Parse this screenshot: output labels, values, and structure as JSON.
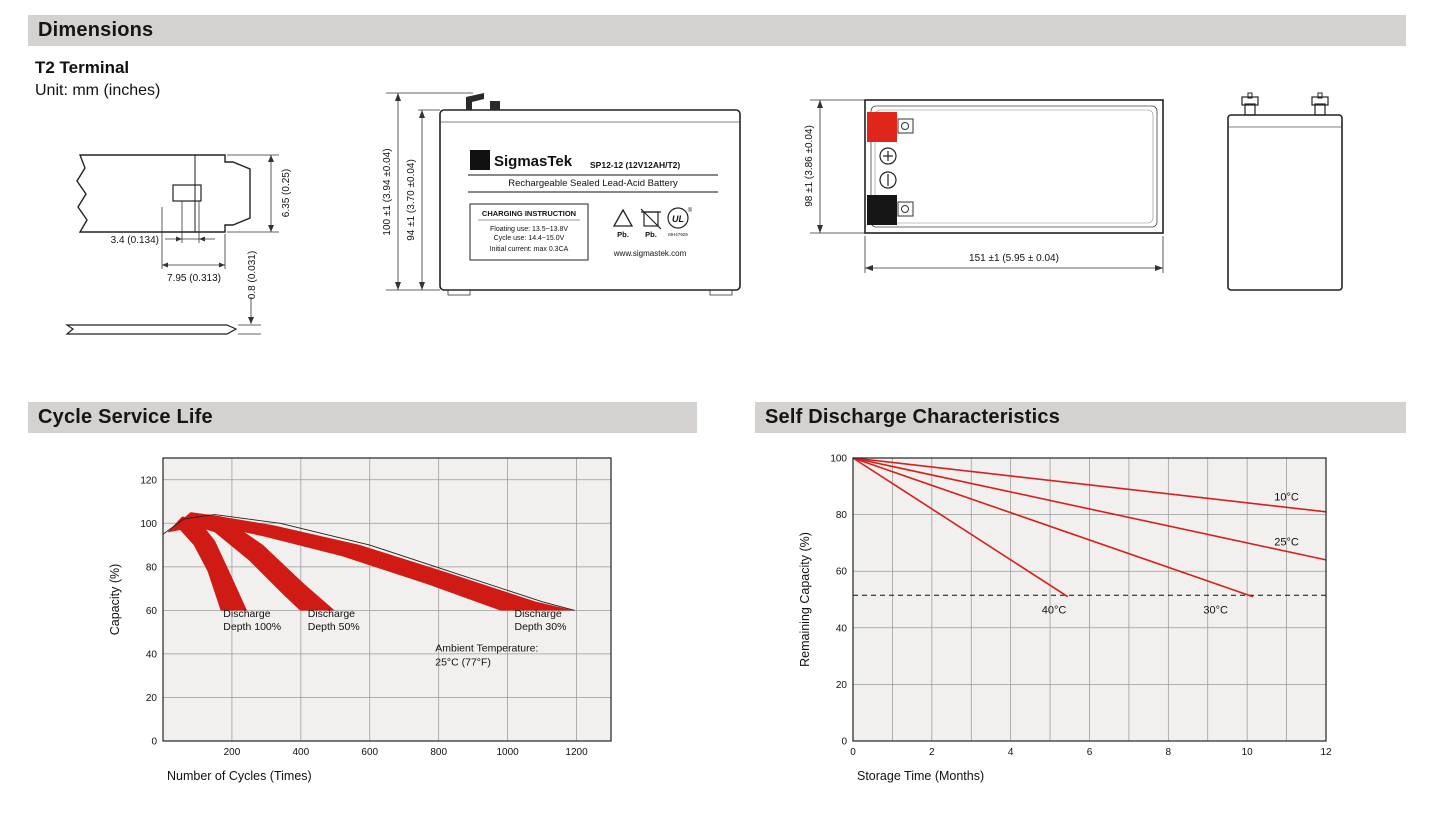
{
  "sections": {
    "dimensions_title": "Dimensions",
    "cycle_title": "Cycle Service Life",
    "self_discharge_title": "Self Discharge Characteristics"
  },
  "dimensions": {
    "terminal_heading": "T2 Terminal",
    "unit_note": "Unit: mm (inches)",
    "terminal_drawing": {
      "dim_height": "6.35 (0.25)",
      "dim_hole": "3.4 (0.134)",
      "dim_width": "7.95 (0.313)",
      "dim_thickness": "0.8 (0.031)"
    },
    "front_view": {
      "dim_overall_height": "100 ±1 (3.94 ±0.04)",
      "dim_case_height": "94 ±1 (3.70 ±0.04)",
      "logo_sigma": "Σ",
      "brand": "SigmasTek",
      "model": "SP12-12 (12V12AH/T2)",
      "subtitle": "Rechargeable Sealed Lead-Acid Battery",
      "charging_box_title": "CHARGING INSTRUCTION",
      "charging_lines": [
        "Floating use: 13.5~13.8V",
        "Cycle use: 14.4~15.0V",
        "Initial current: max 0.3CA"
      ],
      "pb_label_1": "Pb.",
      "pb_label_2": "Pb.",
      "ul_mark": "UL",
      "ul_reg": "®",
      "ul_code": "MH47929",
      "website": "www.sigmastek.com"
    },
    "top_view": {
      "dim_width": "98 ±1 (3.86 ±0.04)",
      "dim_length": "151 ±1 (5.95 ± 0.04)"
    }
  },
  "chart_data": [
    {
      "type": "area",
      "title": "Cycle Service Life",
      "xlabel": "Number of Cycles (Times)",
      "ylabel": "Capacity (%)",
      "xlim": [
        0,
        1300
      ],
      "ylim": [
        0,
        130
      ],
      "xticks": [
        200,
        400,
        600,
        800,
        1000,
        1200
      ],
      "yticks": [
        0,
        20,
        40,
        60,
        80,
        100,
        120
      ],
      "xgrid": [
        200,
        400,
        600,
        800,
        1000,
        1200
      ],
      "ygrid": [
        20,
        40,
        60,
        80,
        100,
        120
      ],
      "grid": true,
      "band_color": "#d01b15",
      "bands": [
        {
          "name": "Discharge Depth 100%",
          "upper": [
            [
              15,
              96
            ],
            [
              55,
              103
            ],
            [
              100,
              102
            ],
            [
              150,
              92
            ],
            [
              200,
              75
            ],
            [
              243,
              60
            ]
          ],
          "lower": [
            [
              15,
              96
            ],
            [
              50,
              97
            ],
            [
              90,
              90
            ],
            [
              130,
              78
            ],
            [
              168,
              60
            ]
          ]
        },
        {
          "name": "Discharge Depth 50%",
          "upper": [
            [
              15,
              96
            ],
            [
              80,
              105
            ],
            [
              170,
              103
            ],
            [
              290,
              90
            ],
            [
              410,
              72
            ],
            [
              497,
              60
            ]
          ],
          "lower": [
            [
              15,
              96
            ],
            [
              70,
              100
            ],
            [
              150,
              96
            ],
            [
              250,
              83
            ],
            [
              345,
              68
            ],
            [
              398,
              60
            ]
          ]
        },
        {
          "name": "Discharge Depth 30%",
          "upper": [
            [
              15,
              96
            ],
            [
              130,
              104
            ],
            [
              320,
              99
            ],
            [
              570,
              90
            ],
            [
              830,
              77
            ],
            [
              1080,
              64
            ],
            [
              1188,
              60
            ]
          ],
          "lower": [
            [
              15,
              96
            ],
            [
              120,
              100
            ],
            [
              295,
              94
            ],
            [
              520,
              85
            ],
            [
              770,
              72
            ],
            [
              980,
              60
            ]
          ]
        }
      ],
      "outline": [
        [
          0,
          95
        ],
        [
          60,
          102
        ],
        [
          150,
          104
        ],
        [
          340,
          100
        ],
        [
          600,
          90
        ],
        [
          850,
          77
        ],
        [
          1100,
          64
        ],
        [
          1195,
          60
        ]
      ],
      "band_labels": [
        {
          "lines": [
            "Discharge",
            "Depth 100%"
          ],
          "x": 175,
          "y": 57
        },
        {
          "lines": [
            "Discharge",
            "Depth 50%"
          ],
          "x": 420,
          "y": 57
        },
        {
          "lines": [
            "Discharge",
            "Depth 30%"
          ],
          "x": 1020,
          "y": 57
        }
      ],
      "annotation": {
        "lines": [
          "Ambient Temperature:",
          "25°C (77°F)"
        ],
        "x": 790,
        "y": 41
      }
    },
    {
      "type": "line",
      "title": "Self Discharge Characteristics",
      "xlabel": "Storage Time (Months)",
      "ylabel": "Remaining Capacity (%)",
      "xlim": [
        0,
        12
      ],
      "ylim": [
        0,
        100
      ],
      "xticks": [
        0,
        2,
        4,
        6,
        8,
        10,
        12
      ],
      "yticks": [
        0,
        20,
        40,
        60,
        80,
        100
      ],
      "xgrid": [
        1,
        2,
        3,
        4,
        5,
        6,
        7,
        8,
        9,
        10,
        11,
        12
      ],
      "ygrid": [
        20,
        40,
        60,
        80
      ],
      "grid": true,
      "line_color": "#d7201b",
      "dashed_y": 51.5,
      "series": [
        {
          "name": "10°C",
          "points": [
            [
              0,
              100
            ],
            [
              12,
              81
            ]
          ],
          "label_x": 11.0,
          "label_y": 85
        },
        {
          "name": "25°C",
          "points": [
            [
              0,
              100
            ],
            [
              12,
              64
            ]
          ],
          "label_x": 11.0,
          "label_y": 69
        },
        {
          "name": "30°C",
          "points": [
            [
              0,
              100
            ],
            [
              10.15,
              51
            ]
          ],
          "label_x": 9.2,
          "label_y": 45
        },
        {
          "name": "40°C",
          "points": [
            [
              0,
              100
            ],
            [
              5.45,
              51
            ]
          ],
          "label_x": 5.1,
          "label_y": 45
        }
      ]
    }
  ]
}
